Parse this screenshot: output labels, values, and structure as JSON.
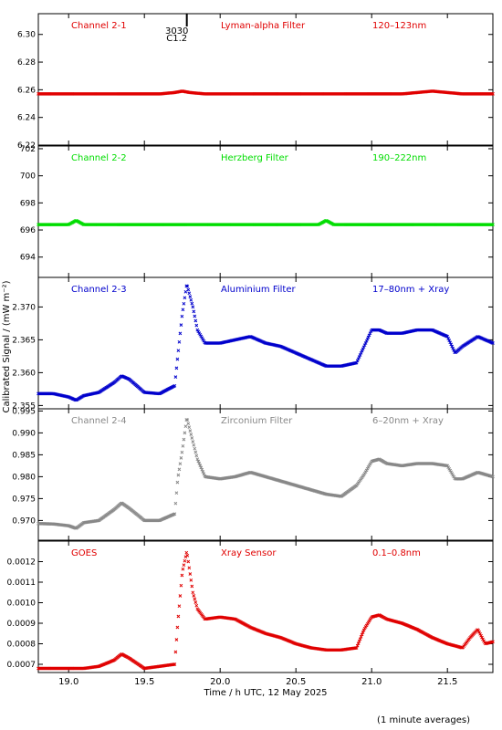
{
  "x_axis": {
    "label": "Time / h UTC, 12 May 2025",
    "range": [
      18.8,
      21.8
    ],
    "ticks": [
      19.0,
      19.5,
      20.0,
      20.5,
      21.0,
      21.5
    ],
    "tick_labels": [
      "19.0",
      "19.5",
      "20.0",
      "20.5",
      "21.0",
      "21.5"
    ]
  },
  "y_axis_label": "Calibrated Signal / (mW m⁻²)",
  "footnote": "(1 minute averages)",
  "event_marker": {
    "x": 19.78,
    "label_top": "3030",
    "label_bottom": "C1.2"
  },
  "chart_data": [
    {
      "type": "scatter",
      "name": "Channel 2-1",
      "filter": "Lyman-alpha Filter",
      "band": "120–123nm",
      "color": "#e00000",
      "ylim": [
        6.22,
        6.315
      ],
      "yticks": [
        6.22,
        6.24,
        6.26,
        6.28,
        6.3
      ],
      "ytick_labels": [
        "6.22",
        "6.24",
        "6.26",
        "6.28",
        "6.30"
      ],
      "x": [
        18.8,
        19.0,
        19.2,
        19.4,
        19.6,
        19.7,
        19.75,
        19.8,
        19.9,
        20.0,
        20.2,
        20.5,
        20.8,
        21.0,
        21.2,
        21.3,
        21.4,
        21.5,
        21.6,
        21.8
      ],
      "values": [
        6.257,
        6.257,
        6.257,
        6.257,
        6.257,
        6.258,
        6.259,
        6.258,
        6.257,
        6.257,
        6.257,
        6.257,
        6.257,
        6.257,
        6.257,
        6.258,
        6.259,
        6.258,
        6.257,
        6.257
      ]
    },
    {
      "type": "scatter",
      "name": "Channel 2-2",
      "filter": "Herzberg Filter",
      "band": "190–222nm",
      "color": "#00dd00",
      "ylim": [
        692.5,
        702.2
      ],
      "yticks": [
        694,
        696,
        698,
        700,
        702
      ],
      "ytick_labels": [
        "694",
        "696",
        "698",
        "700",
        "702"
      ],
      "x": [
        18.8,
        19.0,
        19.05,
        19.1,
        19.5,
        20.0,
        20.5,
        20.65,
        20.7,
        20.75,
        21.0,
        21.5,
        21.8
      ],
      "values": [
        696.4,
        696.4,
        696.7,
        696.4,
        696.4,
        696.4,
        696.4,
        696.4,
        696.7,
        696.4,
        696.4,
        696.4,
        696.4
      ]
    },
    {
      "type": "scatter",
      "name": "Channel 2-3",
      "filter": "Aluminium Filter",
      "band": "17–80nm + Xray",
      "color": "#0000cc",
      "ylim": [
        2.3545,
        2.3745
      ],
      "yticks": [
        2.355,
        2.36,
        2.365,
        2.37
      ],
      "ytick_labels": [
        "2.355",
        "2.360",
        "2.365",
        "2.370"
      ],
      "x": [
        18.8,
        18.9,
        19.0,
        19.05,
        19.1,
        19.2,
        19.3,
        19.35,
        19.4,
        19.5,
        19.6,
        19.7,
        19.72,
        19.75,
        19.78,
        19.82,
        19.85,
        19.9,
        20.0,
        20.1,
        20.2,
        20.3,
        20.4,
        20.5,
        20.6,
        20.7,
        20.8,
        20.9,
        20.95,
        21.0,
        21.05,
        21.1,
        21.2,
        21.3,
        21.4,
        21.5,
        21.55,
        21.6,
        21.7,
        21.8
      ],
      "values": [
        2.3568,
        2.3568,
        2.3563,
        2.3558,
        2.3565,
        2.357,
        2.3585,
        2.3595,
        2.359,
        2.357,
        2.3568,
        2.358,
        2.3625,
        2.369,
        2.3735,
        2.37,
        2.3665,
        2.3645,
        2.3645,
        2.365,
        2.3655,
        2.3645,
        2.364,
        2.363,
        2.362,
        2.361,
        2.361,
        2.3615,
        2.364,
        2.3665,
        2.3665,
        2.366,
        2.366,
        2.3665,
        2.3665,
        2.3655,
        2.363,
        2.364,
        2.3655,
        2.3645
      ]
    },
    {
      "type": "scatter",
      "name": "Channel 2-4",
      "filter": "Zirconium Filter",
      "band": "6–20nm + Xray",
      "color": "#888888",
      "ylim": [
        0.9655,
        0.9955
      ],
      "yticks": [
        0.97,
        0.975,
        0.98,
        0.985,
        0.99,
        0.995
      ],
      "ytick_labels": [
        "0.970",
        "0.975",
        "0.980",
        "0.985",
        "0.990",
        "0.995"
      ],
      "x": [
        18.8,
        18.9,
        19.0,
        19.05,
        19.1,
        19.2,
        19.3,
        19.35,
        19.4,
        19.5,
        19.6,
        19.7,
        19.72,
        19.75,
        19.78,
        19.82,
        19.85,
        19.9,
        20.0,
        20.1,
        20.2,
        20.3,
        20.4,
        20.5,
        20.6,
        20.7,
        20.8,
        20.9,
        20.95,
        21.0,
        21.05,
        21.1,
        21.2,
        21.3,
        21.4,
        21.5,
        21.55,
        21.6,
        21.7,
        21.8
      ],
      "values": [
        0.9693,
        0.9692,
        0.9688,
        0.9682,
        0.9695,
        0.97,
        0.9725,
        0.974,
        0.9728,
        0.97,
        0.97,
        0.9715,
        0.9795,
        0.986,
        0.9935,
        0.988,
        0.984,
        0.98,
        0.9795,
        0.98,
        0.981,
        0.98,
        0.979,
        0.978,
        0.977,
        0.976,
        0.9755,
        0.978,
        0.9805,
        0.9835,
        0.984,
        0.983,
        0.9825,
        0.983,
        0.983,
        0.9825,
        0.9795,
        0.9795,
        0.981,
        0.98
      ]
    },
    {
      "type": "scatter",
      "name": "GOES",
      "filter": "Xray Sensor",
      "band": "0.1–0.8nm",
      "color": "#e00000",
      "ylim": [
        0.00066,
        0.0013
      ],
      "yticks": [
        0.0007,
        0.0008,
        0.0009,
        0.001,
        0.0011,
        0.0012
      ],
      "ytick_labels": [
        "0.0007",
        "0.0008",
        "0.0009",
        "0.0010",
        "0.0011",
        "0.0012"
      ],
      "x": [
        18.8,
        18.9,
        19.0,
        19.1,
        19.2,
        19.3,
        19.35,
        19.4,
        19.5,
        19.6,
        19.7,
        19.72,
        19.75,
        19.78,
        19.82,
        19.85,
        19.9,
        20.0,
        20.1,
        20.2,
        20.3,
        20.4,
        20.5,
        20.6,
        20.7,
        20.8,
        20.9,
        20.95,
        21.0,
        21.05,
        21.1,
        21.2,
        21.3,
        21.4,
        21.5,
        21.6,
        21.65,
        21.7,
        21.75,
        21.8
      ],
      "values": [
        0.00068,
        0.00068,
        0.00068,
        0.00068,
        0.00069,
        0.00072,
        0.00075,
        0.00073,
        0.00068,
        0.00069,
        0.0007,
        0.0009,
        0.00115,
        0.00125,
        0.00105,
        0.00097,
        0.00092,
        0.00093,
        0.00092,
        0.00088,
        0.00085,
        0.00083,
        0.0008,
        0.00078,
        0.00077,
        0.00077,
        0.00078,
        0.00087,
        0.00093,
        0.00094,
        0.00092,
        0.0009,
        0.00087,
        0.00083,
        0.0008,
        0.00078,
        0.00083,
        0.00087,
        0.0008,
        0.00081
      ]
    }
  ]
}
